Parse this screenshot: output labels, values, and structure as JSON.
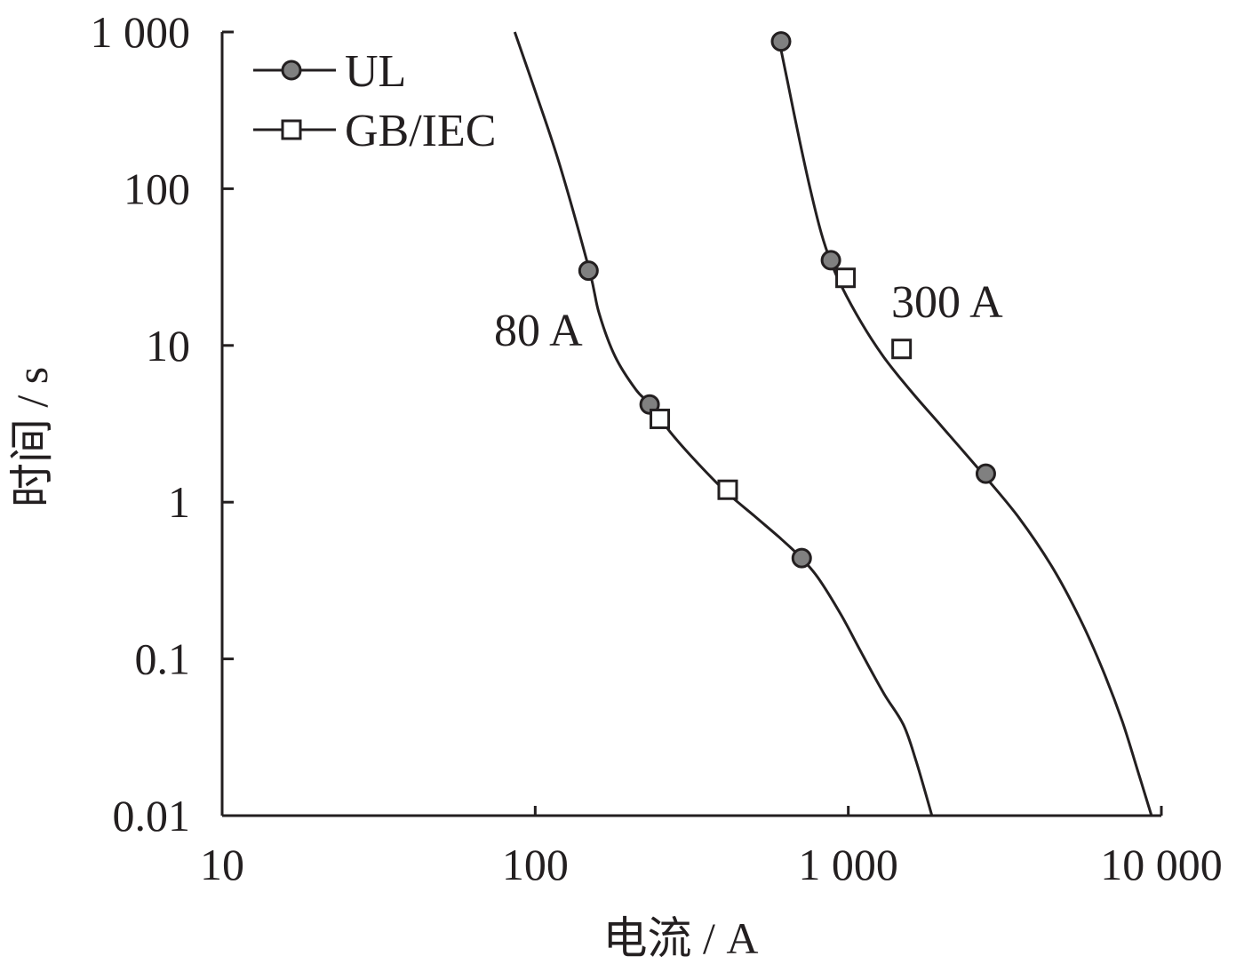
{
  "chart_data": {
    "type": "line",
    "x_scale": "log",
    "y_scale": "log",
    "xlabel": "电流 / A",
    "ylabel": "时间 / s",
    "xlim": [
      10,
      10000
    ],
    "ylim": [
      0.01,
      1000
    ],
    "x_ticks": [
      {
        "value": 10,
        "label": "10"
      },
      {
        "value": 100,
        "label": "100"
      },
      {
        "value": 1000,
        "label": "1 000"
      },
      {
        "value": 10000,
        "label": "10 000"
      }
    ],
    "y_ticks": [
      {
        "value": 1000,
        "label": "1 000"
      },
      {
        "value": 100,
        "label": "100"
      },
      {
        "value": 10,
        "label": "10"
      },
      {
        "value": 1,
        "label": "1"
      },
      {
        "value": 0.1,
        "label": "0.1"
      },
      {
        "value": 0.01,
        "label": "0.01"
      }
    ],
    "grid": false,
    "legend_position": "top-left",
    "legend": [
      {
        "label": "UL",
        "marker": "circle"
      },
      {
        "label": "GB/IEC",
        "marker": "square"
      }
    ],
    "curves": [
      {
        "label": "80 A",
        "x": [
          86,
          100,
          120,
          149,
          160,
          180,
          210,
          233,
          270,
          320,
          400,
          500,
          600,
          700,
          800,
          950,
          1100,
          1300,
          1500,
          1650,
          1850
        ],
        "y": [
          1000,
          420,
          140,
          30,
          16,
          8.5,
          5.2,
          4.2,
          2.8,
          1.9,
          1.2,
          0.82,
          0.6,
          0.45,
          0.33,
          0.19,
          0.11,
          0.06,
          0.038,
          0.022,
          0.01
        ]
      },
      {
        "label": "300 A",
        "x": [
          600,
          640,
          700,
          760,
          820,
          880,
          950,
          1100,
          1300,
          1600,
          2000,
          2700,
          3500,
          4500,
          5500,
          6500,
          7500,
          8500,
          9300
        ],
        "y": [
          900,
          480,
          200,
          95,
          52,
          34,
          24,
          14,
          8.4,
          5,
          3,
          1.5,
          0.8,
          0.38,
          0.18,
          0.085,
          0.04,
          0.018,
          0.01
        ]
      }
    ],
    "series": [
      {
        "name": "UL",
        "marker": "circle",
        "points": [
          {
            "x": 148,
            "y": 30
          },
          {
            "x": 232,
            "y": 4.2
          },
          {
            "x": 710,
            "y": 0.44
          },
          {
            "x": 610,
            "y": 870
          },
          {
            "x": 880,
            "y": 35
          },
          {
            "x": 2750,
            "y": 1.52
          }
        ]
      },
      {
        "name": "GB/IEC",
        "marker": "square",
        "points": [
          {
            "x": 250,
            "y": 3.4
          },
          {
            "x": 412,
            "y": 1.2
          },
          {
            "x": 980,
            "y": 27
          },
          {
            "x": 1480,
            "y": 9.5
          }
        ]
      }
    ]
  }
}
